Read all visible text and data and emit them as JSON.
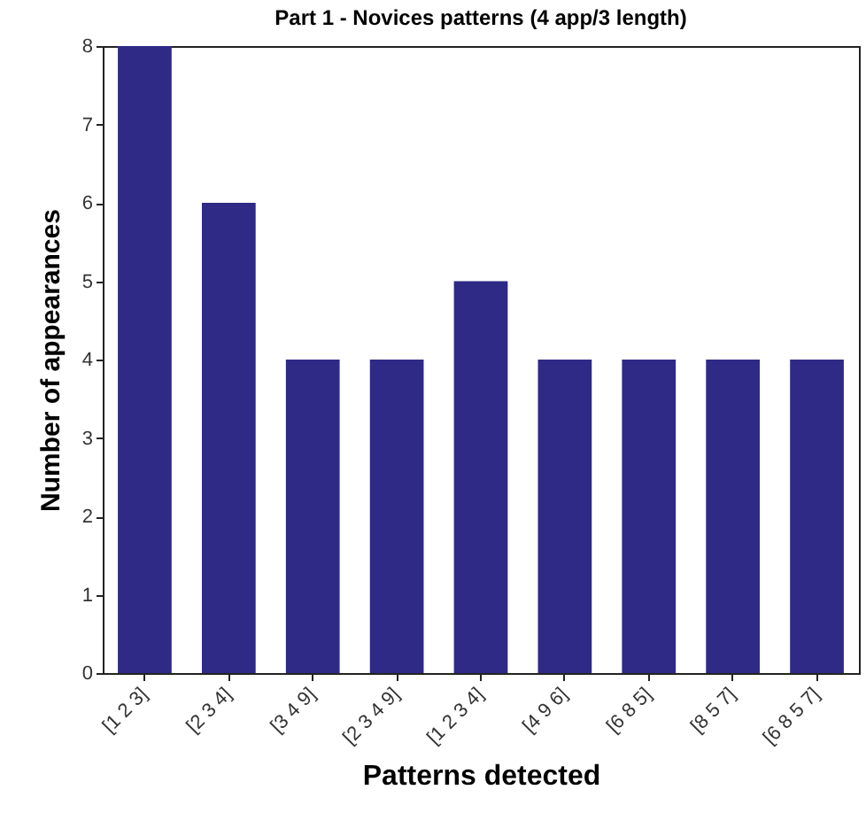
{
  "chart_data": {
    "type": "bar",
    "title": "Part 1 - Novices patterns (4 app/3 length)",
    "xlabel": "Patterns detected",
    "ylabel": "Number of appearances",
    "categories": [
      "[1 2 3]",
      "[2 3 4]",
      "[3 4 9]",
      "[2 3 4 9]",
      "[1 2 3 4]",
      "[4 9 6]",
      "[6 8 5]",
      "[8 5 7]",
      "[6 8 5 7]"
    ],
    "values": [
      8,
      6,
      4,
      4,
      5,
      4,
      4,
      4,
      4
    ],
    "color": "#2e2a85",
    "ylim": [
      0,
      8
    ],
    "yticks": [
      0,
      1,
      2,
      3,
      4,
      5,
      6,
      7,
      8
    ],
    "grid": false
  }
}
